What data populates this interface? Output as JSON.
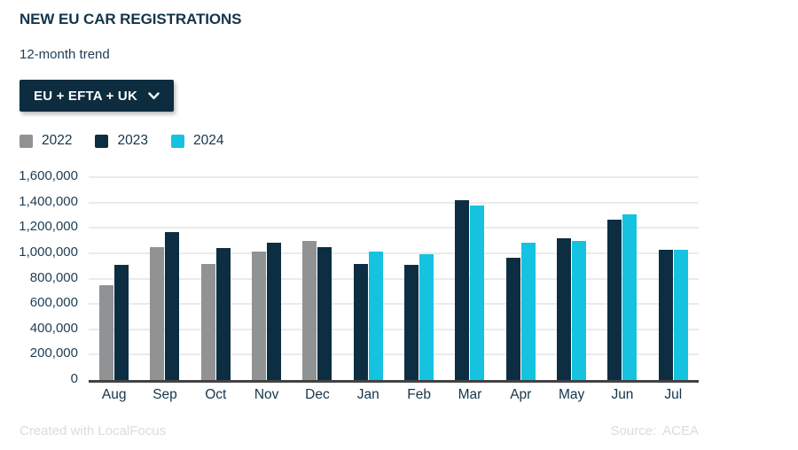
{
  "header": {
    "title": "NEW EU CAR REGISTRATIONS",
    "subtitle": "12-month trend"
  },
  "filter": {
    "selected": "EU + EFTA + UK",
    "chevron_icon": "chevron-down"
  },
  "legend": [
    {
      "label": "2022",
      "color": "#909294"
    },
    {
      "label": "2023",
      "color": "#0d2e42"
    },
    {
      "label": "2024",
      "color": "#15c3e0"
    }
  ],
  "chart_data": {
    "type": "bar",
    "title": "NEW EU CAR REGISTRATIONS",
    "subtitle": "12-month trend",
    "categories": [
      "Aug",
      "Sep",
      "Oct",
      "Nov",
      "Dec",
      "Jan",
      "Feb",
      "Mar",
      "Apr",
      "May",
      "Jun",
      "Jul"
    ],
    "series": [
      {
        "name": "2022",
        "color": "#909294",
        "values": [
          750000,
          1045000,
          915000,
          1015000,
          1095000,
          null,
          null,
          null,
          null,
          null,
          null,
          null
        ]
      },
      {
        "name": "2023",
        "color": "#0d2e42",
        "values": [
          905000,
          1170000,
          1040000,
          1080000,
          1045000,
          915000,
          905000,
          1415000,
          965000,
          1120000,
          1265000,
          1025000
        ]
      },
      {
        "name": "2024",
        "color": "#15c3e0",
        "values": [
          null,
          null,
          null,
          null,
          null,
          1015000,
          990000,
          1380000,
          1085000,
          1095000,
          1310000,
          1025000
        ]
      }
    ],
    "xlabel": "",
    "ylabel": "",
    "ylim": [
      0,
      1600000
    ],
    "ytick_step": 200000,
    "grid": true,
    "gridline_color": "#ebebeb",
    "axis_line_color": "#424242",
    "legend_position": "top-left"
  },
  "footer": {
    "credit": "Created with LocalFocus",
    "source_label": "Source:",
    "source_value": "ACEA"
  }
}
